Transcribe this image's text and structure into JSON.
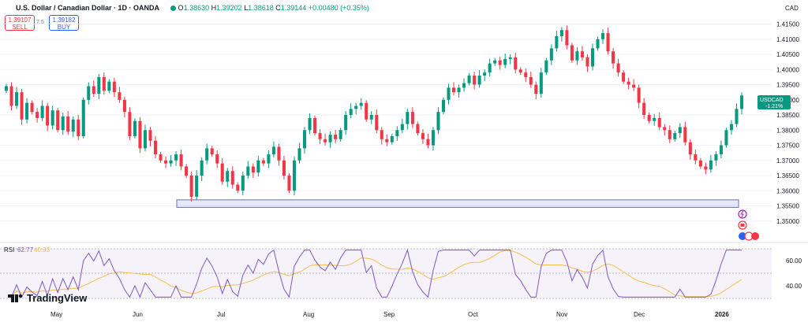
{
  "header": {
    "symbol": "U.S. Dollar / Canadian Dollar · 1D · OANDA",
    "o_label": "O",
    "o_value": "1.38630",
    "h_label": "H",
    "h_value": "1.39202",
    "l_label": "L",
    "l_value": "1.38618",
    "c_label": "C",
    "c_value": "1.39144",
    "change": "+0.00480 (+0.35%)"
  },
  "trade": {
    "sell_price": "1.39107",
    "sell_label": "SELL",
    "spread": "7.5",
    "buy_price": "1.39182",
    "buy_label": "BUY"
  },
  "currency_label": "CAD",
  "price_badge": {
    "symbol": "USDCAD",
    "change": "-1.21%",
    "color": "#089981"
  },
  "rsi": {
    "label": "RSI",
    "value1": "62.77",
    "value2": "40.93",
    "ticks": [
      "60.00",
      "40.00"
    ],
    "line_color": "#7e57c2",
    "ma_color": "#f5c04a"
  },
  "brand": "TradingView",
  "colors": {
    "up": "#089981",
    "down": "#f23645",
    "zone": "#c5c9f5"
  },
  "chart_data": {
    "type": "candlestick",
    "title": "U.S. Dollar / Canadian Dollar · 1D · OANDA",
    "ylabel": "CAD",
    "ylim": [
      1.345,
      1.418
    ],
    "y_ticks": [
      "1.41500",
      "1.41000",
      "1.40500",
      "1.40000",
      "1.39500",
      "1.39000",
      "1.38500",
      "1.38000",
      "1.37500",
      "1.37000",
      "1.36500",
      "1.36000",
      "1.35500",
      "1.35000"
    ],
    "x_ticks": [
      "May",
      "Jun",
      "Jul",
      "Aug",
      "Sep",
      "Oct",
      "Nov",
      "Dec",
      "2026"
    ],
    "last_close": "1.39144",
    "support_zone": [
      1.3545,
      1.357
    ],
    "closes": [
      1.3945,
      1.388,
      1.3925,
      1.3835,
      1.389,
      1.386,
      1.384,
      1.388,
      1.3815,
      1.3865,
      1.38,
      1.3845,
      1.3795,
      1.3835,
      1.378,
      1.39,
      1.3945,
      1.392,
      1.3975,
      1.393,
      1.396,
      1.3925,
      1.39,
      1.386,
      1.378,
      1.383,
      1.374,
      1.38,
      1.3765,
      1.372,
      1.37,
      1.369,
      1.37,
      1.372,
      1.368,
      1.365,
      1.358,
      1.365,
      1.37,
      1.374,
      1.372,
      1.369,
      1.363,
      1.3665,
      1.362,
      1.36,
      1.365,
      1.368,
      1.366,
      1.37,
      1.369,
      1.372,
      1.3745,
      1.37,
      1.365,
      1.36,
      1.37,
      1.374,
      1.38,
      1.384,
      1.379,
      1.377,
      1.376,
      1.3785,
      1.377,
      1.38,
      1.385,
      1.387,
      1.388,
      1.389,
      1.3835,
      1.385,
      1.38,
      1.377,
      1.376,
      1.378,
      1.38,
      1.382,
      1.386,
      1.382,
      1.379,
      1.377,
      1.375,
      1.38,
      1.386,
      1.39,
      1.394,
      1.3925,
      1.394,
      1.3955,
      1.398,
      1.395,
      1.398,
      1.399,
      1.402,
      1.403,
      1.4015,
      1.4035,
      1.404,
      1.4,
      1.399,
      1.3975,
      1.395,
      1.392,
      1.399,
      1.403,
      1.407,
      1.411,
      1.413,
      1.408,
      1.403,
      1.406,
      1.404,
      1.401,
      1.407,
      1.41,
      1.412,
      1.406,
      1.402,
      1.399,
      1.396,
      1.395,
      1.394,
      1.389,
      1.385,
      1.383,
      1.384,
      1.381,
      1.38,
      1.377,
      1.379,
      1.381,
      1.376,
      1.372,
      1.37,
      1.368,
      1.367,
      1.37,
      1.372,
      1.375,
      1.38,
      1.382,
      1.387,
      1.3914
    ]
  }
}
